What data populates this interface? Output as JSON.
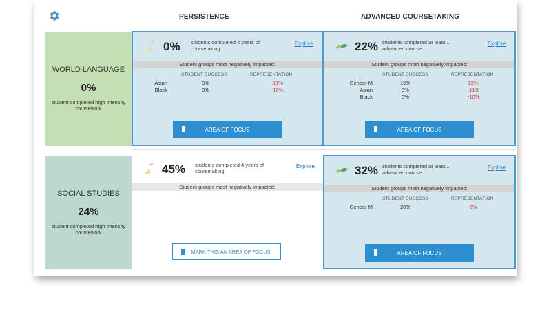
{
  "header": {
    "settings_icon": "gear-icon",
    "persistence_title": "PERSISTENCE",
    "advanced_title": "ADVANCED COURSETAKING"
  },
  "colors": {
    "accent": "#2e8fd0",
    "negative": "#d43a3a",
    "world_language_bg": "#c5dfb4",
    "social_studies_bg": "#bcd8cf",
    "highlight_bg": "#d4e7ef"
  },
  "sections": [
    {
      "name": "WORLD LANGUAGE",
      "pct": "0%",
      "note": "student completed high intensity coursework",
      "persistence": {
        "pct": "0%",
        "desc": "students completed 4 years of coursetaking",
        "explore": "Explore",
        "groups_heading": "Student groups most negatively impacted:",
        "col_success": "STUDENT SUCCESS",
        "col_rep": "REPRESENTATION",
        "rows": [
          {
            "group": "Asian",
            "success": "0%",
            "rep": "-11%"
          },
          {
            "group": "Black",
            "success": "0%",
            "rep": "-10%"
          }
        ],
        "button": "AREA OF FOCUS"
      },
      "advanced": {
        "pct": "22%",
        "desc": "students completed at least 1 advanced course",
        "explore": "Explore",
        "groups_heading": "Student groups most negatively impacted:",
        "col_success": "STUDENT SUCCESS",
        "col_rep": "REPRESENTATION",
        "rows": [
          {
            "group": "Gender M",
            "success": "16%",
            "rep": "-13%"
          },
          {
            "group": "Asian",
            "success": "0%",
            "rep": "-11%"
          },
          {
            "group": "Black",
            "success": "0%",
            "rep": "-10%"
          }
        ],
        "button": "AREA OF FOCUS"
      }
    },
    {
      "name": "SOCIAL STUDIES",
      "pct": "24%",
      "note": "student completed high intensity coursework",
      "persistence": {
        "pct": "45%",
        "desc": "students completed 4 years of coursetaking",
        "explore": "Explore",
        "groups_heading": "Student groups most negatively impacted:",
        "button": "MARK THIS AN AREA OF FOCUS"
      },
      "advanced": {
        "pct": "32%",
        "desc": "students completed at least 1 advanced course",
        "explore": "Explore",
        "groups_heading": "Student groups most negatively impacted:",
        "col_success": "STUDENT SUCCESS",
        "col_rep": "REPRESENTATION",
        "rows": [
          {
            "group": "Gender M",
            "success": "28%",
            "rep": "-6%"
          }
        ],
        "button": "AREA OF FOCUS"
      }
    }
  ]
}
